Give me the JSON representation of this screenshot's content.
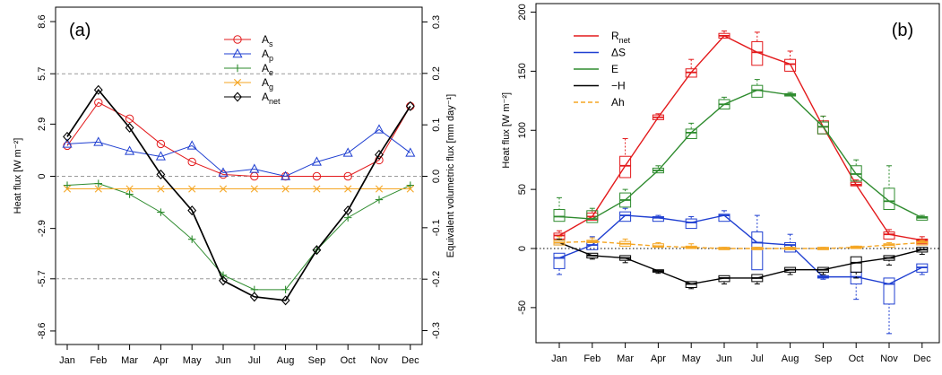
{
  "chart_data": [
    {
      "panel": "(a)",
      "type": "line",
      "months": [
        "Jan",
        "Feb",
        "Mar",
        "Apr",
        "May",
        "Jun",
        "Jul",
        "Aug",
        "Sep",
        "Oct",
        "Nov",
        "Dec"
      ],
      "ylabel": "Heat flux [W m⁻²]",
      "y2label": "Equivalent volumetric flux [mm day⁻¹]",
      "yticks": [
        "-8.6",
        "-5.7",
        "-2.9",
        "0",
        "2.9",
        "5.7",
        "8.6"
      ],
      "ylim": [
        -9.2,
        8.9
      ],
      "y2ticks": [
        "-0.3",
        "-0.2",
        "-0.1",
        "0.0",
        "0.1",
        "0.2",
        "0.3"
      ],
      "dashed_lines": [
        5.7,
        0,
        -5.7
      ],
      "series": [
        {
          "name": "A",
          "sub": "s",
          "color": "#e31a1c",
          "marker": "circle",
          "values": [
            1.7,
            4.1,
            3.2,
            1.8,
            0.8,
            0.1,
            0.0,
            0.0,
            0.0,
            0.0,
            0.9,
            3.9
          ]
        },
        {
          "name": "A",
          "sub": "p",
          "color": "#1f3fd1",
          "marker": "triangle",
          "values": [
            1.8,
            1.9,
            1.4,
            1.1,
            1.7,
            0.2,
            0.4,
            0.0,
            0.8,
            1.3,
            2.6,
            1.3
          ]
        },
        {
          "name": "A",
          "sub": "e",
          "color": "#2e8b2e",
          "marker": "plus",
          "values": [
            -0.5,
            -0.4,
            -1.0,
            -2.0,
            -3.5,
            -5.5,
            -6.3,
            -6.3,
            -4.1,
            -2.3,
            -1.3,
            -0.5
          ]
        },
        {
          "name": "A",
          "sub": "g",
          "color": "#f5a623",
          "marker": "x",
          "values": [
            -0.7,
            -0.7,
            -0.7,
            -0.7,
            -0.7,
            -0.7,
            -0.7,
            -0.7,
            -0.7,
            -0.7,
            -0.7,
            -0.7
          ]
        },
        {
          "name": "A",
          "sub": "net",
          "color": "#000000",
          "marker": "diamond",
          "values": [
            2.2,
            4.8,
            2.7,
            0.1,
            -1.9,
            -5.8,
            -6.7,
            -6.9,
            -4.1,
            -1.9,
            1.2,
            3.9
          ]
        }
      ],
      "legend_position": "top-center"
    },
    {
      "panel": "(b)",
      "type": "line-boxplot",
      "months": [
        "Jan",
        "Feb",
        "Mar",
        "Apr",
        "May",
        "Jun",
        "Jul",
        "Aug",
        "Sep",
        "Oct",
        "Nov",
        "Dec"
      ],
      "ylabel": "Heat flux [W m⁻²]",
      "yticks": [
        "-50",
        "0",
        "50",
        "100",
        "150",
        "200"
      ],
      "ylim": [
        -72,
        205
      ],
      "zero_line": 0,
      "series": [
        {
          "name": "R",
          "sub": "net",
          "color": "#e31a1c",
          "style": "solid",
          "values": [
            11,
            27,
            70,
            111,
            149,
            180,
            166,
            156,
            103,
            54,
            12,
            7
          ],
          "boxes": [
            [
              8,
              13,
              15
            ],
            [
              24,
              30,
              32
            ],
            [
              60,
              78,
              93
            ],
            [
              109,
              113,
              114
            ],
            [
              145,
              152,
              160
            ],
            [
              178,
              182,
              184
            ],
            [
              155,
              175,
              183
            ],
            [
              150,
              160,
              167
            ],
            [
              97,
              108,
              112
            ],
            [
              53,
              56,
              58
            ],
            [
              8,
              14,
              16
            ],
            [
              4,
              8,
              10
            ]
          ]
        },
        {
          "name": "ΔS",
          "sub": "",
          "color": "#1f3fd1",
          "style": "solid",
          "values": [
            -8,
            3,
            28,
            26,
            22,
            28,
            5,
            3,
            -24,
            -24,
            -30,
            -16
          ],
          "boxes": [
            [
              -17,
              -4,
              -22
            ],
            [
              -1,
              5,
              10
            ],
            [
              23,
              31,
              34
            ],
            [
              23,
              27,
              28
            ],
            [
              17,
              25,
              27
            ],
            [
              23,
              29,
              32
            ],
            [
              -18,
              14,
              28
            ],
            [
              -3,
              5,
              12
            ],
            [
              -25,
              -23,
              -26
            ],
            [
              -30,
              -20,
              -43
            ],
            [
              -47,
              -25,
              -72
            ],
            [
              -20,
              -13,
              -22
            ]
          ]
        },
        {
          "name": "E",
          "sub": "",
          "color": "#2e8b2e",
          "style": "solid",
          "values": [
            27,
            25,
            41,
            66,
            98,
            122,
            134,
            130,
            103,
            63,
            40,
            26
          ],
          "boxes": [
            [
              23,
              33,
              43
            ],
            [
              22,
              32,
              34
            ],
            [
              35,
              47,
              50
            ],
            [
              64,
              68,
              70
            ],
            [
              93,
              101,
              106
            ],
            [
              118,
              126,
              128
            ],
            [
              128,
              138,
              143
            ],
            [
              129,
              131,
              132
            ],
            [
              97,
              107,
              112
            ],
            [
              57,
              70,
              75
            ],
            [
              33,
              51,
              70
            ],
            [
              24,
              27,
              28
            ]
          ]
        },
        {
          "name": "−H",
          "sub": "",
          "color": "#000000",
          "style": "solid",
          "values": [
            5,
            -6,
            -8,
            -19,
            -30,
            -25,
            -25,
            -18,
            -18,
            -12,
            -8,
            -1
          ],
          "boxes": [
            [
              3,
              7,
              8
            ],
            [
              -8,
              -4,
              -9
            ],
            [
              -10,
              -6,
              -12
            ],
            [
              -20,
              -18,
              -21
            ],
            [
              -33,
              -28,
              -34
            ],
            [
              -28,
              -23,
              -30
            ],
            [
              -28,
              -22,
              -30
            ],
            [
              -20,
              -16,
              -22
            ],
            [
              -20,
              -16,
              -22
            ],
            [
              -20,
              -7,
              -25
            ],
            [
              -10,
              -6,
              -14
            ],
            [
              -3,
              1,
              -5
            ]
          ]
        },
        {
          "name": "Ah",
          "sub": "",
          "color": "#f5a623",
          "style": "dashed",
          "values": [
            5,
            6,
            4,
            2,
            1,
            0,
            0,
            0,
            0,
            1,
            3,
            5
          ],
          "boxes": [
            [
              3,
              7,
              10
            ],
            [
              5,
              7,
              9
            ],
            [
              2,
              6,
              8
            ],
            [
              1,
              4,
              5
            ],
            [
              0,
              2,
              4
            ],
            [
              -1,
              1,
              1
            ],
            [
              -1,
              1,
              1
            ],
            [
              -1,
              1,
              1
            ],
            [
              -1,
              1,
              1
            ],
            [
              0,
              2,
              2
            ],
            [
              1,
              4,
              5
            ],
            [
              3,
              6,
              7
            ]
          ]
        }
      ],
      "legend_position": "top-left"
    }
  ]
}
